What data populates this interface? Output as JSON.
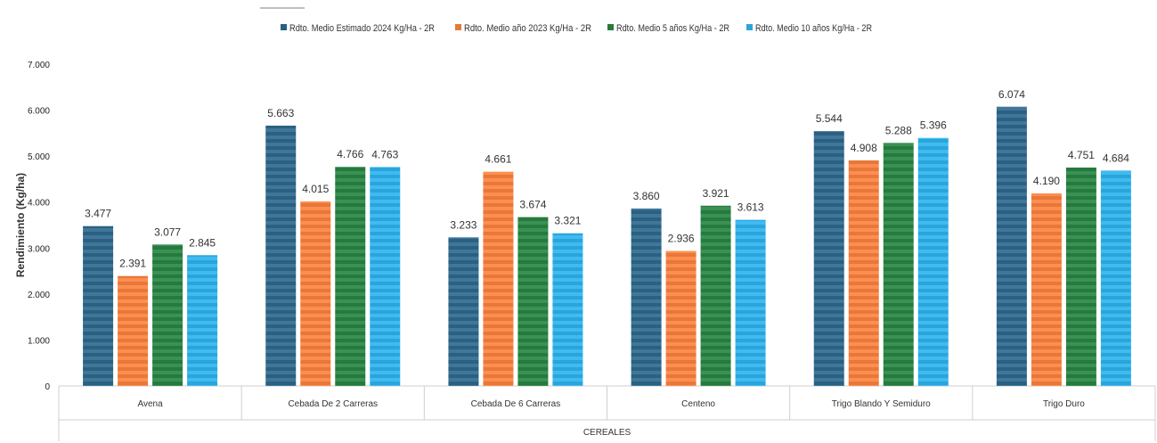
{
  "chart_data": {
    "type": "bar",
    "categories": [
      "Avena",
      "Cebada De 2 Carreras",
      "Cebada De 6 Carreras",
      "Centeno",
      "Trigo Blando Y Semiduro",
      "Trigo Duro"
    ],
    "series": [
      {
        "name": "Rdto. Medio Estimado 2024 Kg/Ha - 2R",
        "color": "#2a6082",
        "values": [
          3477,
          5663,
          3233,
          3860,
          5544,
          6074
        ],
        "labels": [
          "3.477",
          "5.663",
          "3.233",
          "3.860",
          "5.544",
          "6.074"
        ]
      },
      {
        "name": "Rdto. Medio año 2023 Kg/Ha - 2R",
        "color": "#e8783a",
        "values": [
          2391,
          4015,
          4661,
          2936,
          4908,
          4190
        ],
        "labels": [
          "2.391",
          "4.015",
          "4.661",
          "2.936",
          "4.908",
          "4.190"
        ]
      },
      {
        "name": "Rdto. Medio 5 años Kg/Ha - 2R",
        "color": "#257a3e",
        "values": [
          3077,
          4766,
          3674,
          3921,
          5288,
          4751
        ],
        "labels": [
          "3.077",
          "4.766",
          "3.674",
          "3.921",
          "5.288",
          "4.751"
        ]
      },
      {
        "name": "Rdto. Medio 10 años Kg/Ha - 2R",
        "color": "#2aa5dc",
        "values": [
          2845,
          4763,
          3321,
          3613,
          5396,
          4684
        ],
        "labels": [
          "2.845",
          "4.763",
          "3.321",
          "3.613",
          "5.396",
          "4.684"
        ]
      }
    ],
    "ylabel": "Rendimiento (Kg/ha)",
    "xlabel": "CEREALES",
    "ylim": [
      0,
      7000
    ],
    "yticks": [
      0,
      1000,
      2000,
      3000,
      4000,
      5000,
      6000,
      7000
    ],
    "ytick_labels": [
      "0",
      "1.000",
      "2.000",
      "3.000",
      "4.000",
      "5.000",
      "6.000",
      "7.000"
    ],
    "grid": false,
    "legend": "top-center",
    "bar_pattern": "horizontal-stripes"
  }
}
